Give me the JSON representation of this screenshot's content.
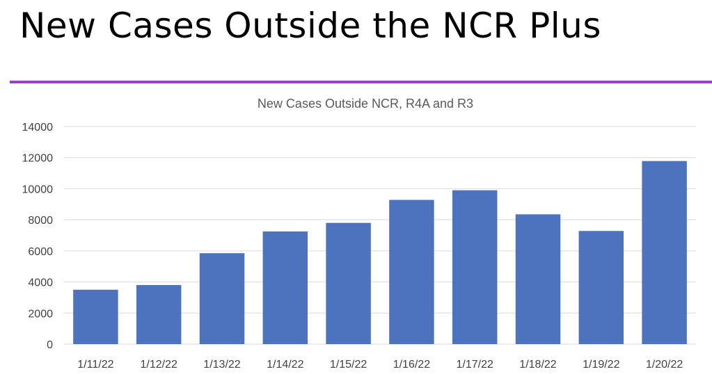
{
  "slide": {
    "title": "New Cases Outside the NCR Plus"
  },
  "colors": {
    "bar": "#4e73be",
    "accent_rule": "#9b3fc6",
    "gridline": "#d9d9d9"
  },
  "chart_data": {
    "type": "bar",
    "title": "New Cases Outside NCR, R4A and R3",
    "xlabel": "",
    "ylabel": "",
    "categories": [
      "1/11/22",
      "1/12/22",
      "1/13/22",
      "1/14/22",
      "1/15/22",
      "1/16/22",
      "1/17/22",
      "1/18/22",
      "1/19/22",
      "1/20/22"
    ],
    "values": [
      3500,
      3800,
      5850,
      7250,
      7800,
      9280,
      9900,
      8350,
      7280,
      11780
    ],
    "ylim": [
      0,
      14000
    ],
    "yticks": [
      0,
      2000,
      4000,
      6000,
      8000,
      10000,
      12000,
      14000
    ],
    "grid": true,
    "legend": "none"
  }
}
